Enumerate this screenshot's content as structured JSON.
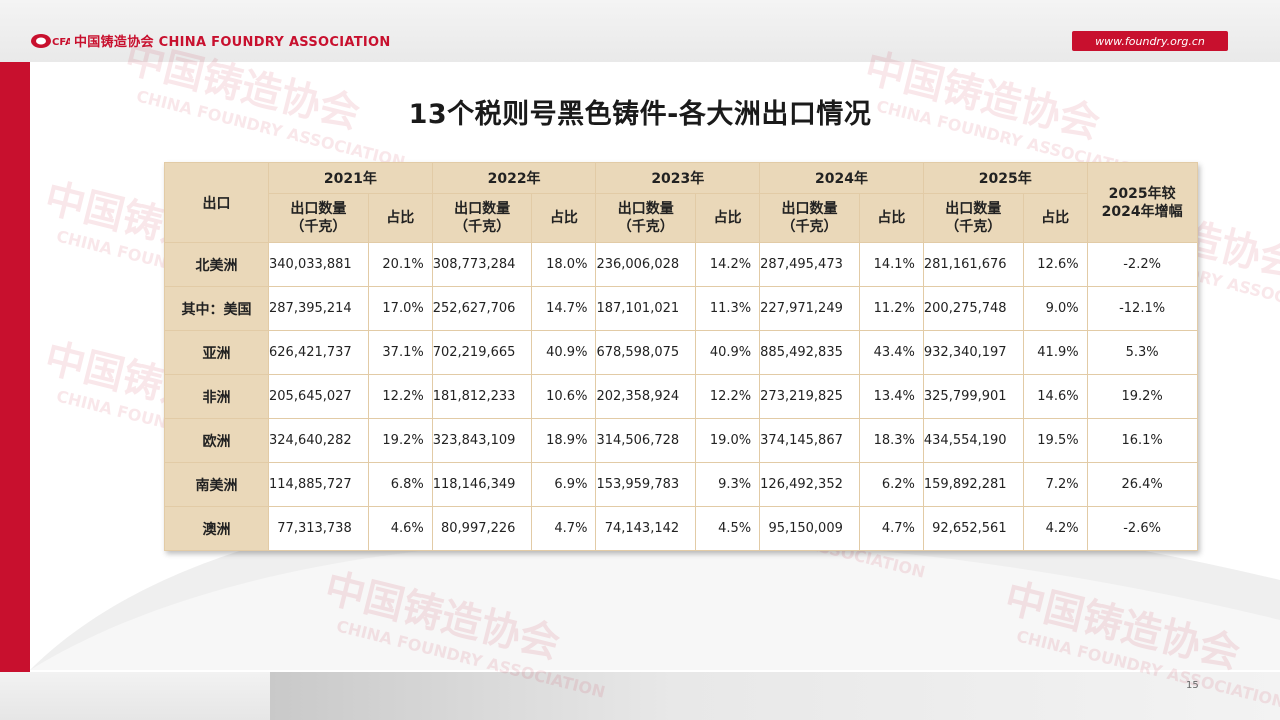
{
  "header": {
    "logo_mark": "CFA",
    "logo_text": "中国铸造协会 CHINA FOUNDRY ASSOCIATION",
    "site_url": "www.foundry.org.cn"
  },
  "watermark": {
    "text_cn": "中国铸造协会",
    "text_en": "CHINA FOUNDRY ASSOCIATION"
  },
  "title": "13个税则号黑色铸件-各大洲出口情况",
  "table": {
    "corner_header": "出口",
    "years": [
      "2021年",
      "2022年",
      "2023年",
      "2024年",
      "2025年"
    ],
    "qty_header": "出口数量\n（千克）",
    "share_header": "占比",
    "growth_header": "2025年较\n2024年增幅",
    "rows": [
      {
        "region": "北美洲",
        "cells": [
          "340,033,881",
          "20.1%",
          "308,773,284",
          "18.0%",
          "236,006,028",
          "14.2%",
          "287,495,473",
          "14.1%",
          "281,161,676",
          "12.6%"
        ],
        "growth": "-2.2%"
      },
      {
        "region": "其中：美国",
        "cells": [
          "287,395,214",
          "17.0%",
          "252,627,706",
          "14.7%",
          "187,101,021",
          "11.3%",
          "227,971,249",
          "11.2%",
          "200,275,748",
          "9.0%"
        ],
        "growth": "-12.1%"
      },
      {
        "region": "亚洲",
        "cells": [
          "626,421,737",
          "37.1%",
          "702,219,665",
          "40.9%",
          "678,598,075",
          "40.9%",
          "885,492,835",
          "43.4%",
          "932,340,197",
          "41.9%"
        ],
        "growth": "5.3%"
      },
      {
        "region": "非洲",
        "cells": [
          "205,645,027",
          "12.2%",
          "181,812,233",
          "10.6%",
          "202,358,924",
          "12.2%",
          "273,219,825",
          "13.4%",
          "325,799,901",
          "14.6%"
        ],
        "growth": "19.2%"
      },
      {
        "region": "欧洲",
        "cells": [
          "324,640,282",
          "19.2%",
          "323,843,109",
          "18.9%",
          "314,506,728",
          "19.0%",
          "374,145,867",
          "18.3%",
          "434,554,190",
          "19.5%"
        ],
        "growth": "16.1%"
      },
      {
        "region": "南美洲",
        "cells": [
          "114,885,727",
          "6.8%",
          "118,146,349",
          "6.9%",
          "153,959,783",
          "9.3%",
          "126,492,352",
          "6.2%",
          "159,892,281",
          "7.2%"
        ],
        "growth": "26.4%"
      },
      {
        "region": "澳洲",
        "cells": [
          "77,313,738",
          "4.6%",
          "80,997,226",
          "4.7%",
          "74,143,142",
          "4.5%",
          "95,150,009",
          "4.7%",
          "92,652,561",
          "4.2%"
        ],
        "growth": "-2.6%"
      }
    ]
  },
  "page_number": "15",
  "colors": {
    "brand_red": "#c8102e",
    "header_fill": "#ead8b9",
    "border": "#e2cba6"
  }
}
